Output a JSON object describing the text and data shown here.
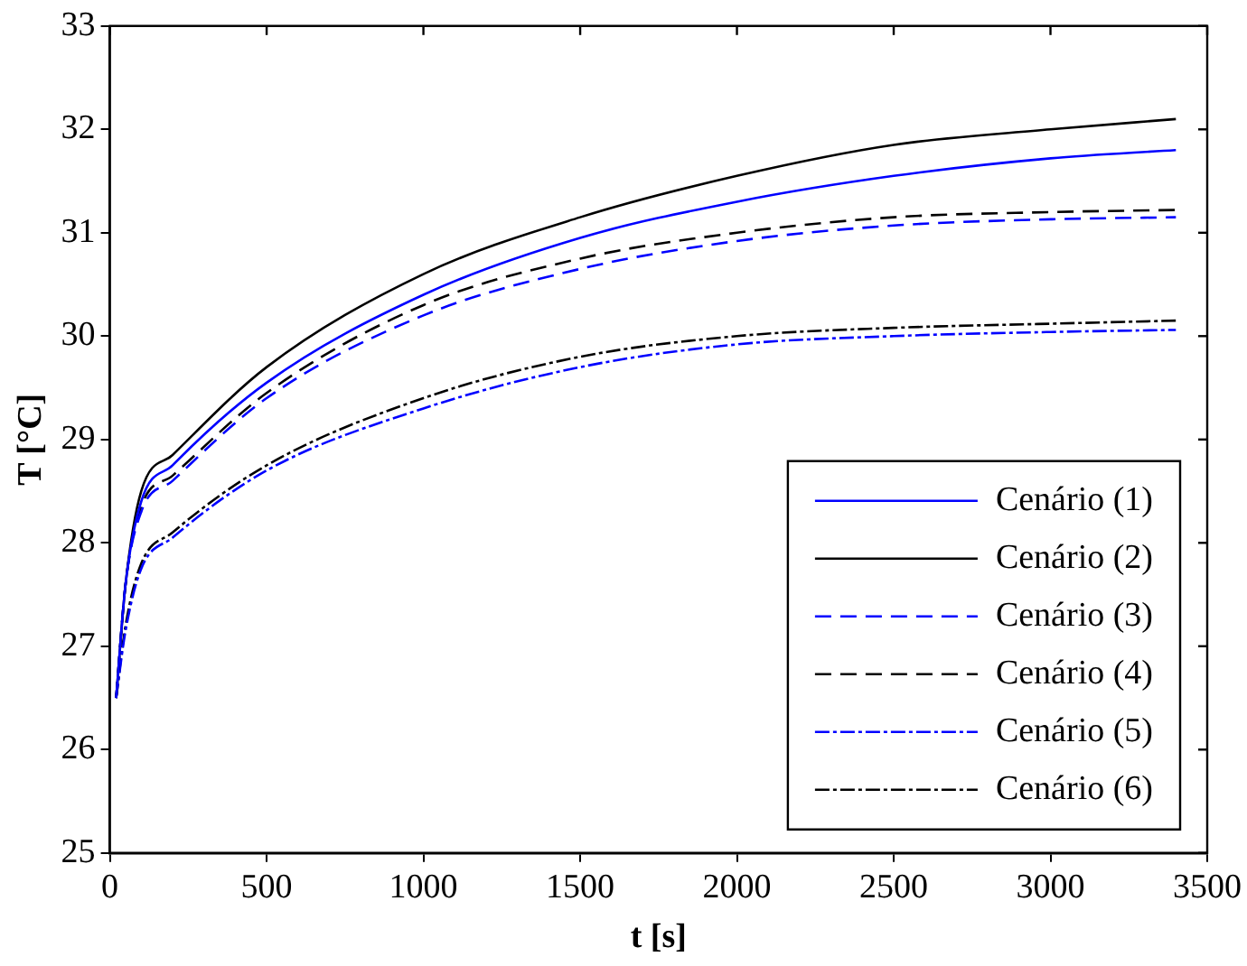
{
  "chart_data": {
    "type": "line",
    "xlabel": "t [s]",
    "ylabel": "T [°C]",
    "x": [
      20,
      50,
      100,
      200,
      500,
      1000,
      1500,
      2000,
      2500,
      3000,
      3400
    ],
    "xlim": [
      0,
      3500
    ],
    "xticks": [
      0,
      500,
      1000,
      1500,
      2000,
      2500,
      3000,
      3500
    ],
    "ylim": [
      25,
      33
    ],
    "yticks": [
      25,
      26,
      27,
      28,
      29,
      30,
      31,
      32,
      33
    ],
    "grid": false,
    "legend": "bottom right",
    "marker": "none",
    "series": [
      {
        "name": "Cenário (1)",
        "color": "#0000ff",
        "line_style": "solid",
        "values": [
          26.5,
          27.6,
          28.4,
          28.75,
          29.55,
          30.4,
          30.95,
          31.3,
          31.55,
          31.72,
          31.8
        ]
      },
      {
        "name": "Cenário (2)",
        "color": "#000000",
        "line_style": "solid",
        "values": [
          26.5,
          27.6,
          28.5,
          28.85,
          29.7,
          30.6,
          31.15,
          31.55,
          31.85,
          32.0,
          32.1
        ]
      },
      {
        "name": "Cenário (3)",
        "color": "#0000ff",
        "line_style": "dashed",
        "values": [
          26.5,
          27.6,
          28.3,
          28.6,
          29.4,
          30.2,
          30.65,
          30.92,
          31.07,
          31.13,
          31.15
        ]
      },
      {
        "name": "Cenário (4)",
        "color": "#000000",
        "line_style": "dashed",
        "values": [
          26.5,
          27.6,
          28.35,
          28.65,
          29.45,
          30.3,
          30.75,
          31.0,
          31.15,
          31.2,
          31.22
        ]
      },
      {
        "name": "Cenário (5)",
        "color": "#0000ff",
        "line_style": "dashdot",
        "values": [
          26.5,
          27.15,
          27.75,
          28.05,
          28.7,
          29.3,
          29.7,
          29.92,
          30.0,
          30.04,
          30.06
        ]
      },
      {
        "name": "Cenário (6)",
        "color": "#000000",
        "line_style": "dashdot",
        "values": [
          26.5,
          27.2,
          27.8,
          28.1,
          28.75,
          29.4,
          29.8,
          30.0,
          30.08,
          30.12,
          30.15
        ]
      }
    ]
  }
}
